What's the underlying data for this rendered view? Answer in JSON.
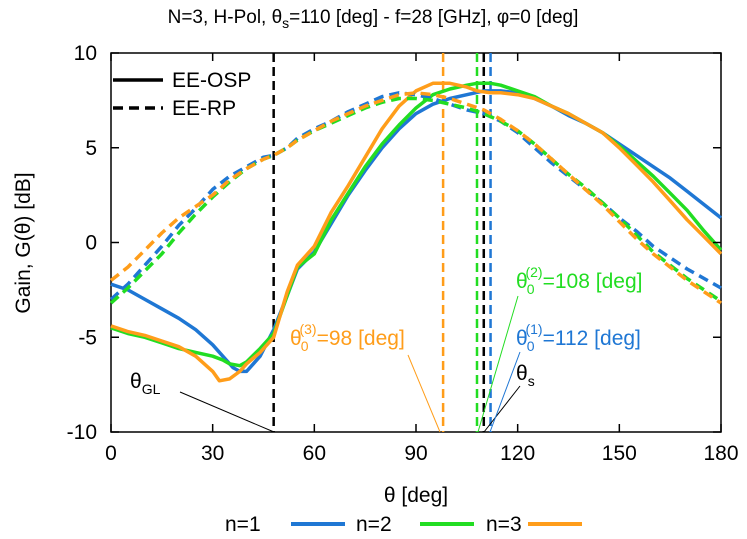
{
  "chart_data": {
    "type": "line",
    "title": {
      "main": "N=3, H-Pol, θ",
      "sub": "s",
      "rest": "=110 [deg] - f=28 [GHz], φ=0 [deg]"
    },
    "xlabel": "θ [deg]",
    "ylabel": "Gain, G(θ) [dB]",
    "xlim": [
      0,
      180
    ],
    "ylim": [
      -10,
      10
    ],
    "x_ticks": [
      0,
      30,
      60,
      90,
      120,
      150,
      180
    ],
    "y_ticks": [
      -10,
      -5,
      0,
      5,
      10
    ],
    "grid": false,
    "legend_styles": {
      "position": "top-left",
      "entries": [
        {
          "label": "EE-OSP",
          "dash": "solid"
        },
        {
          "label": "EE-RP",
          "dash": "dashed"
        }
      ]
    },
    "legend_series": {
      "position": "bottom",
      "entries": [
        {
          "label": "n=1",
          "color": "#1f77d4"
        },
        {
          "label": "n=2",
          "color": "#22dd22"
        },
        {
          "label": "n=3",
          "color": "#ff9d1a"
        }
      ]
    },
    "vlines": [
      {
        "x": 48,
        "color": "#000000",
        "dash": "dashed"
      },
      {
        "x": 98,
        "color": "#ff9d1a",
        "dash": "dashed"
      },
      {
        "x": 108,
        "color": "#22dd22",
        "dash": "dashed"
      },
      {
        "x": 110,
        "color": "#000000",
        "dash": "dashed"
      },
      {
        "x": 112,
        "color": "#1f77d4",
        "dash": "dashed"
      }
    ],
    "annotations": {
      "theta_gl": {
        "base": "θ",
        "sub": "GL",
        "arrow_to": [
          48,
          -10
        ]
      },
      "theta_s": {
        "base": "θ",
        "sub": "s",
        "arrow_to": [
          110,
          -10
        ]
      },
      "theta_0_3": {
        "base": "θ",
        "sub": "0",
        "sup": "(3)",
        "rest": "=98 [deg]",
        "color": "#ff9d1a",
        "arrow_to": [
          98,
          -10
        ]
      },
      "theta_0_2": {
        "base": "θ",
        "sub": "0",
        "sup": "(2)",
        "rest": "=108 [deg]",
        "color": "#22dd22",
        "arrow_to": [
          108,
          -10
        ]
      },
      "theta_0_1": {
        "base": "θ",
        "sub": "0",
        "sup": "(1)",
        "rest": "=112 [deg]",
        "color": "#1f77d4",
        "arrow_to": [
          112,
          -10
        ]
      }
    },
    "series": [
      {
        "color": "#1f77d4",
        "dash": "solid",
        "x": [
          0,
          5,
          10,
          15,
          20,
          25,
          30,
          33,
          36,
          38,
          40,
          44,
          48,
          52,
          55,
          60,
          65,
          70,
          75,
          80,
          85,
          90,
          95,
          100,
          105,
          110,
          115,
          120,
          125,
          130,
          135,
          140,
          145,
          150,
          155,
          160,
          165,
          170,
          175,
          180
        ],
        "y": [
          -2.2,
          -2.5,
          -3.0,
          -3.5,
          -4.0,
          -4.6,
          -5.4,
          -6.0,
          -6.6,
          -6.8,
          -6.8,
          -6.0,
          -4.6,
          -2.8,
          -1.4,
          -0.5,
          1.0,
          2.5,
          3.8,
          5.0,
          6.0,
          6.8,
          7.3,
          7.6,
          7.8,
          8.0,
          8.0,
          7.9,
          7.6,
          7.2,
          6.7,
          6.3,
          5.8,
          5.2,
          4.6,
          4.0,
          3.4,
          2.7,
          2.0,
          1.3
        ]
      },
      {
        "color": "#22dd22",
        "dash": "solid",
        "x": [
          0,
          5,
          10,
          15,
          20,
          25,
          30,
          33,
          35,
          38,
          40,
          44,
          48,
          52,
          55,
          60,
          65,
          70,
          75,
          80,
          85,
          90,
          95,
          100,
          105,
          108,
          112,
          115,
          120,
          125,
          130,
          135,
          140,
          145,
          150,
          155,
          160,
          165,
          170,
          175,
          180
        ],
        "y": [
          -4.5,
          -4.8,
          -5.0,
          -5.3,
          -5.6,
          -5.8,
          -6.0,
          -6.2,
          -6.4,
          -6.5,
          -6.3,
          -5.6,
          -4.8,
          -2.8,
          -1.3,
          -0.6,
          1.2,
          2.6,
          4.0,
          5.2,
          6.2,
          7.1,
          7.8,
          8.1,
          8.3,
          8.4,
          8.4,
          8.3,
          8.0,
          7.7,
          7.2,
          6.8,
          6.3,
          5.8,
          5.1,
          4.3,
          3.5,
          2.6,
          1.7,
          0.6,
          -0.4
        ]
      },
      {
        "color": "#ff9d1a",
        "dash": "solid",
        "x": [
          0,
          5,
          10,
          15,
          20,
          25,
          30,
          32,
          35,
          38,
          40,
          44,
          48,
          52,
          55,
          60,
          65,
          70,
          75,
          80,
          85,
          90,
          95,
          100,
          105,
          108,
          112,
          115,
          120,
          125,
          130,
          135,
          140,
          145,
          150,
          155,
          160,
          165,
          170,
          175,
          180
        ],
        "y": [
          -4.4,
          -4.7,
          -4.9,
          -5.2,
          -5.5,
          -6.0,
          -6.8,
          -7.3,
          -7.2,
          -6.8,
          -6.4,
          -5.8,
          -5.0,
          -2.6,
          -1.2,
          -0.2,
          1.6,
          3.0,
          4.5,
          6.0,
          7.2,
          8.0,
          8.4,
          8.4,
          8.2,
          8.0,
          7.9,
          7.9,
          7.8,
          7.6,
          7.2,
          6.8,
          6.3,
          5.8,
          5.0,
          4.1,
          3.2,
          2.2,
          1.2,
          0.3,
          -0.6
        ]
      },
      {
        "color": "#1f77d4",
        "dash": "dashed",
        "x": [
          0,
          5,
          10,
          15,
          20,
          25,
          30,
          35,
          40,
          45,
          48,
          52,
          55,
          60,
          65,
          70,
          75,
          80,
          85,
          90,
          95,
          100,
          105,
          110,
          115,
          120,
          125,
          130,
          135,
          140,
          145,
          150,
          155,
          160,
          165,
          170,
          175,
          180
        ],
        "y": [
          -3.0,
          -2.2,
          -1.2,
          -0.2,
          0.9,
          1.8,
          2.8,
          3.5,
          4.0,
          4.5,
          4.6,
          5.0,
          5.5,
          6.0,
          6.4,
          6.9,
          7.3,
          7.7,
          7.9,
          7.8,
          7.6,
          7.3,
          7.0,
          6.8,
          6.4,
          5.8,
          5.0,
          4.2,
          3.5,
          2.8,
          2.1,
          1.3,
          0.6,
          -0.2,
          -0.8,
          -1.4,
          -1.9,
          -2.4
        ]
      },
      {
        "color": "#22dd22",
        "dash": "dashed",
        "x": [
          0,
          5,
          10,
          15,
          20,
          25,
          30,
          35,
          40,
          45,
          48,
          52,
          55,
          60,
          65,
          70,
          75,
          80,
          85,
          90,
          95,
          100,
          105,
          110,
          115,
          120,
          125,
          130,
          135,
          140,
          145,
          150,
          155,
          160,
          165,
          170,
          175,
          180
        ],
        "y": [
          -3.2,
          -2.4,
          -1.5,
          -0.6,
          0.5,
          1.5,
          2.4,
          3.2,
          3.9,
          4.4,
          4.6,
          5.0,
          5.4,
          5.9,
          6.3,
          6.7,
          7.1,
          7.4,
          7.6,
          7.6,
          7.5,
          7.3,
          7.1,
          6.8,
          6.4,
          5.9,
          5.2,
          4.4,
          3.6,
          2.9,
          2.1,
          1.3,
          0.4,
          -0.5,
          -1.2,
          -1.9,
          -2.5,
          -3.1
        ]
      },
      {
        "color": "#ff9d1a",
        "dash": "dashed",
        "x": [
          0,
          5,
          10,
          15,
          20,
          25,
          30,
          35,
          40,
          45,
          48,
          52,
          55,
          60,
          65,
          70,
          75,
          80,
          85,
          90,
          95,
          100,
          105,
          110,
          115,
          120,
          125,
          130,
          135,
          140,
          145,
          150,
          155,
          160,
          165,
          170,
          175,
          180
        ],
        "y": [
          -2.0,
          -1.3,
          -0.4,
          0.5,
          1.3,
          1.9,
          2.5,
          3.3,
          3.9,
          4.4,
          4.6,
          5.0,
          5.4,
          5.9,
          6.4,
          6.8,
          7.2,
          7.5,
          7.8,
          7.9,
          7.8,
          7.6,
          7.3,
          7.0,
          6.5,
          5.9,
          5.2,
          4.4,
          3.6,
          2.8,
          2.0,
          1.1,
          0.2,
          -0.6,
          -1.3,
          -2.0,
          -2.6,
          -3.2
        ]
      }
    ]
  }
}
